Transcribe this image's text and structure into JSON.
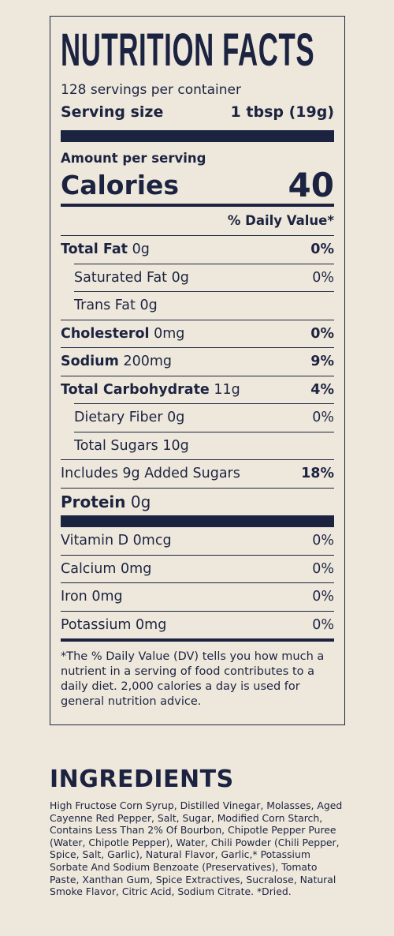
{
  "title": "NUTRITION FACTS",
  "servings": "128 servings per container",
  "serving_size": {
    "label": "Serving size",
    "value": "1 tbsp (19g)"
  },
  "amount_per_serving": "Amount per serving",
  "calories": {
    "label": "Calories",
    "value": "40"
  },
  "dv_header": "% Daily Value*",
  "nutrients": [
    {
      "name": "Total Fat",
      "amount": "0g",
      "dv": "0%"
    },
    {
      "name": "Saturated Fat",
      "amount": "0g",
      "dv": "0%"
    },
    {
      "name": "Trans Fat",
      "amount": "0g"
    },
    {
      "name": "Cholesterol",
      "amount": "0mg",
      "dv": "0%"
    },
    {
      "name": "Sodium",
      "amount": "200mg",
      "dv": "9%"
    },
    {
      "name": "Total Carbohydrate",
      "amount": "11g",
      "dv": "4%"
    },
    {
      "name": "Dietary Fiber",
      "amount": "0g",
      "dv": "0%"
    },
    {
      "name": "Total Sugars",
      "amount": "10g"
    },
    {
      "name": "Includes 9g Added Sugars",
      "dv": "18%"
    },
    {
      "name": "Protein",
      "amount": "0g"
    }
  ],
  "vitamins": [
    {
      "name": "Vitamin D",
      "amount": "0mcg",
      "dv": "0%"
    },
    {
      "name": "Calcium",
      "amount": "0mg",
      "dv": "0%"
    },
    {
      "name": "Iron",
      "amount": "0mg",
      "dv": "0%"
    },
    {
      "name": "Potassium",
      "amount": "0mg",
      "dv": "0%"
    }
  ],
  "footnote": "*The % Daily Value (DV) tells you how much a nutrient in a serving of food contributes to a daily diet. 2,000 calories a day is used for general nutrition advice.",
  "ingredients": {
    "title": "INGREDIENTS",
    "text": "High Fructose Corn Syrup, Distilled Vinegar, Molasses, Aged Cayenne Red Pepper, Salt, Sugar, Modified Corn Starch, Contains Less Than 2% Of Bourbon, Chipotle Pepper Puree (Water, Chipotle Pepper), Water, Chili Powder (Chili Pepper, Spice, Salt, Garlic), Natural Flavor, Garlic,* Potassium Sorbate And Sodium Benzoate (Preservatives), Tomato Paste, Xanthan Gum, Spice Extractives, Sucralose, Natural Smoke Flavor, Citric Acid, Sodium Citrate. *Dried."
  }
}
